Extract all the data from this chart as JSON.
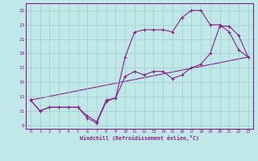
{
  "xlabel": "Windchill (Refroidissement éolien,°C)",
  "background_color": "#c0e8e8",
  "line_color": "#882288",
  "grid_color": "#a0cccc",
  "xlim": [
    -0.5,
    23.5
  ],
  "ylim": [
    8.5,
    26
  ],
  "yticks": [
    9,
    11,
    13,
    15,
    17,
    19,
    21,
    23,
    25
  ],
  "xticks": [
    0,
    1,
    2,
    3,
    4,
    5,
    6,
    7,
    8,
    9,
    10,
    11,
    12,
    13,
    14,
    15,
    16,
    17,
    18,
    19,
    20,
    21,
    22,
    23
  ],
  "series1_x": [
    0,
    1,
    2,
    3,
    4,
    5,
    6,
    7,
    8,
    9,
    10,
    11,
    12,
    13,
    14,
    15,
    16,
    17,
    18,
    19,
    20,
    21,
    22,
    23
  ],
  "series1_y": [
    12.5,
    11.0,
    11.5,
    11.5,
    11.5,
    11.5,
    10.3,
    9.5,
    12.5,
    12.8,
    18.5,
    22.0,
    22.3,
    22.3,
    22.3,
    22.0,
    24.0,
    25.0,
    25.0,
    23.0,
    23.0,
    22.0,
    19.5,
    18.5
  ],
  "series2_x": [
    0,
    1,
    2,
    3,
    4,
    5,
    6,
    7,
    8,
    9,
    10,
    11,
    12,
    13,
    14,
    15,
    16,
    17,
    18,
    19,
    20,
    21,
    22,
    23
  ],
  "series2_y": [
    12.5,
    11.0,
    11.5,
    11.5,
    11.5,
    11.5,
    10.0,
    9.3,
    12.3,
    12.8,
    15.8,
    16.5,
    16.0,
    16.5,
    16.5,
    15.5,
    16.0,
    17.0,
    17.5,
    19.0,
    22.8,
    22.8,
    21.5,
    18.5
  ],
  "series3_x": [
    0,
    23
  ],
  "series3_y": [
    12.5,
    18.5
  ]
}
